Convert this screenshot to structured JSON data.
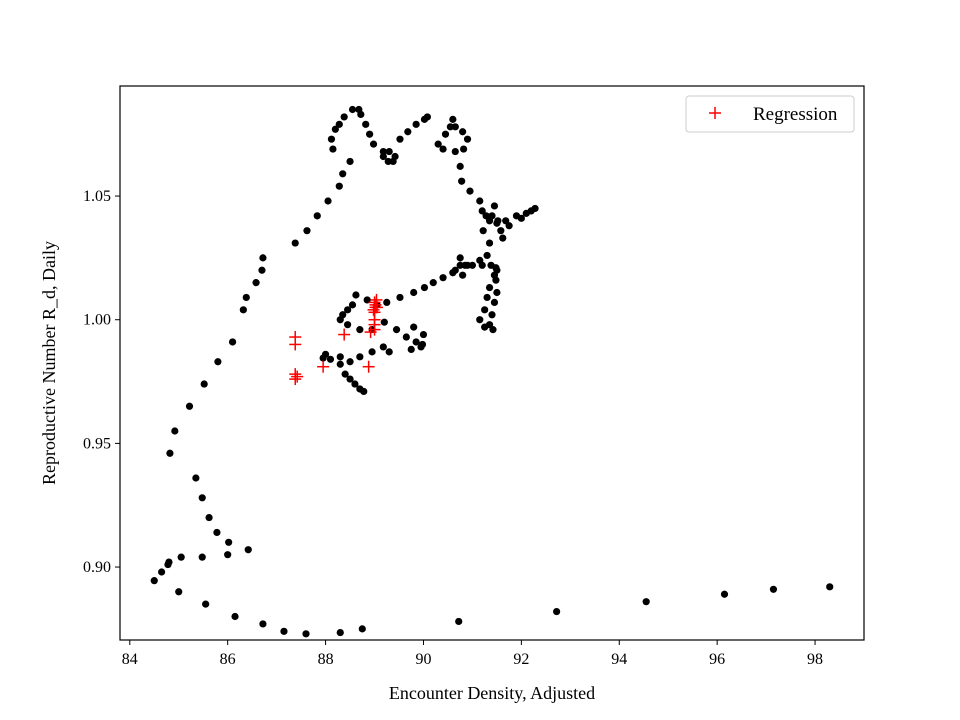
{
  "chart_data": {
    "type": "scatter",
    "title": "",
    "xlabel": "Encounter Density, Adjusted",
    "ylabel": "Reproductive Number R_d, Daily",
    "xlim": [
      83.8,
      99.0
    ],
    "ylim": [
      0.8705,
      1.0945
    ],
    "xticks": [
      84,
      86,
      88,
      90,
      92,
      94,
      96,
      98
    ],
    "yticks": [
      0.9,
      0.95,
      1.0,
      1.05
    ],
    "xtick_labels": [
      "84",
      "86",
      "88",
      "90",
      "92",
      "94",
      "96",
      "98"
    ],
    "ytick_labels": [
      "0.90",
      "0.95",
      "1.00",
      "1.05"
    ],
    "grid": false,
    "legend_position": "top-right",
    "series": [
      {
        "name": "",
        "marker": "circle",
        "color": "#000000",
        "points": [
          [
            98.3,
            0.892
          ],
          [
            97.15,
            0.891
          ],
          [
            96.15,
            0.889
          ],
          [
            94.55,
            0.886
          ],
          [
            92.72,
            0.882
          ],
          [
            90.72,
            0.878
          ],
          [
            88.75,
            0.875
          ],
          [
            88.3,
            0.8735
          ],
          [
            87.6,
            0.873
          ],
          [
            87.15,
            0.874
          ],
          [
            86.72,
            0.877
          ],
          [
            86.15,
            0.88
          ],
          [
            85.55,
            0.885
          ],
          [
            85.0,
            0.89
          ],
          [
            84.5,
            0.8945
          ],
          [
            84.65,
            0.898
          ],
          [
            84.78,
            0.901
          ],
          [
            84.8,
            0.902
          ],
          [
            85.05,
            0.904
          ],
          [
            85.48,
            0.904
          ],
          [
            86.0,
            0.905
          ],
          [
            86.42,
            0.907
          ],
          [
            86.02,
            0.91
          ],
          [
            85.78,
            0.914
          ],
          [
            85.62,
            0.92
          ],
          [
            85.48,
            0.928
          ],
          [
            85.35,
            0.936
          ],
          [
            85.22,
            0.965
          ],
          [
            84.92,
            0.955
          ],
          [
            84.82,
            0.946
          ],
          [
            85.52,
            0.974
          ],
          [
            85.8,
            0.983
          ],
          [
            86.1,
            0.991
          ],
          [
            86.32,
            1.004
          ],
          [
            86.38,
            1.009
          ],
          [
            86.58,
            1.015
          ],
          [
            86.7,
            1.02
          ],
          [
            86.72,
            1.025
          ],
          [
            87.38,
            1.031
          ],
          [
            87.62,
            1.036
          ],
          [
            87.83,
            1.042
          ],
          [
            88.05,
            1.048
          ],
          [
            88.28,
            1.054
          ],
          [
            88.35,
            1.059
          ],
          [
            88.5,
            1.064
          ],
          [
            88.15,
            1.069
          ],
          [
            88.12,
            1.073
          ],
          [
            88.2,
            1.077
          ],
          [
            88.28,
            1.079
          ],
          [
            88.38,
            1.082
          ],
          [
            88.55,
            1.085
          ],
          [
            88.68,
            1.085
          ],
          [
            88.72,
            1.083
          ],
          [
            88.82,
            1.079
          ],
          [
            88.9,
            1.075
          ],
          [
            88.98,
            1.071
          ],
          [
            89.18,
            1.068
          ],
          [
            89.18,
            1.066
          ],
          [
            89.28,
            1.064
          ],
          [
            89.38,
            1.064
          ],
          [
            89.42,
            1.066
          ],
          [
            89.3,
            1.068
          ],
          [
            89.52,
            1.073
          ],
          [
            89.68,
            1.076
          ],
          [
            89.85,
            1.079
          ],
          [
            90.02,
            1.081
          ],
          [
            90.08,
            1.082
          ],
          [
            90.3,
            1.071
          ],
          [
            90.4,
            1.069
          ],
          [
            90.45,
            1.075
          ],
          [
            90.55,
            1.078
          ],
          [
            90.6,
            1.081
          ],
          [
            90.65,
            1.078
          ],
          [
            90.8,
            1.076
          ],
          [
            90.9,
            1.073
          ],
          [
            90.82,
            1.069
          ],
          [
            90.65,
            1.068
          ],
          [
            90.75,
            1.062
          ],
          [
            90.78,
            1.056
          ],
          [
            90.95,
            1.052
          ],
          [
            91.15,
            1.048
          ],
          [
            91.2,
            1.044
          ],
          [
            91.28,
            1.042
          ],
          [
            91.35,
            1.04
          ],
          [
            91.5,
            1.039
          ],
          [
            91.68,
            1.04
          ],
          [
            91.9,
            1.042
          ],
          [
            92.1,
            1.043
          ],
          [
            92.28,
            1.045
          ],
          [
            92.2,
            1.044
          ],
          [
            92.0,
            1.041
          ],
          [
            91.75,
            1.038
          ],
          [
            91.58,
            1.036
          ],
          [
            91.62,
            1.033
          ],
          [
            91.52,
            1.04
          ],
          [
            91.4,
            1.042
          ],
          [
            91.45,
            1.046
          ],
          [
            91.22,
            1.036
          ],
          [
            91.35,
            1.031
          ],
          [
            91.3,
            1.026
          ],
          [
            91.15,
            1.024
          ],
          [
            90.9,
            1.022
          ],
          [
            90.8,
            1.018
          ],
          [
            90.65,
            1.02
          ],
          [
            90.75,
            1.025
          ],
          [
            90.85,
            1.022
          ],
          [
            91.0,
            1.022
          ],
          [
            91.2,
            1.022
          ],
          [
            91.38,
            1.022
          ],
          [
            91.5,
            1.02
          ],
          [
            91.48,
            1.016
          ],
          [
            91.5,
            1.011
          ],
          [
            91.45,
            1.007
          ],
          [
            91.4,
            1.002
          ],
          [
            91.35,
            0.998
          ],
          [
            91.42,
            0.996
          ],
          [
            91.25,
            0.997
          ],
          [
            91.15,
            1.0
          ],
          [
            91.25,
            1.004
          ],
          [
            91.3,
            1.009
          ],
          [
            91.35,
            1.013
          ],
          [
            91.45,
            1.018
          ],
          [
            91.48,
            1.021
          ],
          [
            90.75,
            1.022
          ],
          [
            90.6,
            1.019
          ],
          [
            90.4,
            1.017
          ],
          [
            90.2,
            1.015
          ],
          [
            90.02,
            1.013
          ],
          [
            89.8,
            1.011
          ],
          [
            89.52,
            1.009
          ],
          [
            89.25,
            1.007
          ],
          [
            89.05,
            1.006
          ],
          [
            88.85,
            1.008
          ],
          [
            88.62,
            1.01
          ],
          [
            88.55,
            1.006
          ],
          [
            88.45,
            1.004
          ],
          [
            88.35,
            1.002
          ],
          [
            88.3,
            1.0
          ],
          [
            88.45,
            0.998
          ],
          [
            88.7,
            0.996
          ],
          [
            88.95,
            0.996
          ],
          [
            89.2,
            0.999
          ],
          [
            89.45,
            0.996
          ],
          [
            89.65,
            0.993
          ],
          [
            89.85,
            0.991
          ],
          [
            89.95,
            0.989
          ],
          [
            89.75,
            0.988
          ],
          [
            89.3,
            0.987
          ],
          [
            88.95,
            0.987
          ],
          [
            88.7,
            0.985
          ],
          [
            88.5,
            0.983
          ],
          [
            88.3,
            0.982
          ],
          [
            88.1,
            0.984
          ],
          [
            87.95,
            0.9845
          ],
          [
            88.4,
            0.978
          ],
          [
            88.5,
            0.976
          ],
          [
            88.6,
            0.974
          ],
          [
            88.7,
            0.972
          ],
          [
            88.78,
            0.971
          ],
          [
            88.3,
            0.985
          ],
          [
            88.0,
            0.986
          ],
          [
            89.8,
            0.997
          ],
          [
            90.0,
            0.994
          ],
          [
            89.98,
            0.99
          ],
          [
            89.18,
            0.989
          ]
        ]
      },
      {
        "name": "Regression",
        "marker": "plus",
        "color": "#ff0000",
        "points": [
          [
            87.38,
            0.993
          ],
          [
            87.38,
            0.99
          ],
          [
            87.38,
            0.978
          ],
          [
            87.38,
            0.976
          ],
          [
            87.42,
            0.977
          ],
          [
            87.95,
            0.981
          ],
          [
            88.38,
            0.994
          ],
          [
            88.88,
            0.981
          ],
          [
            88.92,
            0.995
          ],
          [
            89.0,
            0.996
          ],
          [
            89.0,
            0.998
          ],
          [
            89.0,
            1.0
          ],
          [
            89.0,
            1.003
          ],
          [
            89.02,
            1.005
          ],
          [
            89.02,
            1.006
          ],
          [
            89.0,
            1.007
          ],
          [
            89.05,
            1.005
          ],
          [
            88.98,
            1.004
          ],
          [
            89.04,
            1.008
          ]
        ]
      }
    ]
  }
}
